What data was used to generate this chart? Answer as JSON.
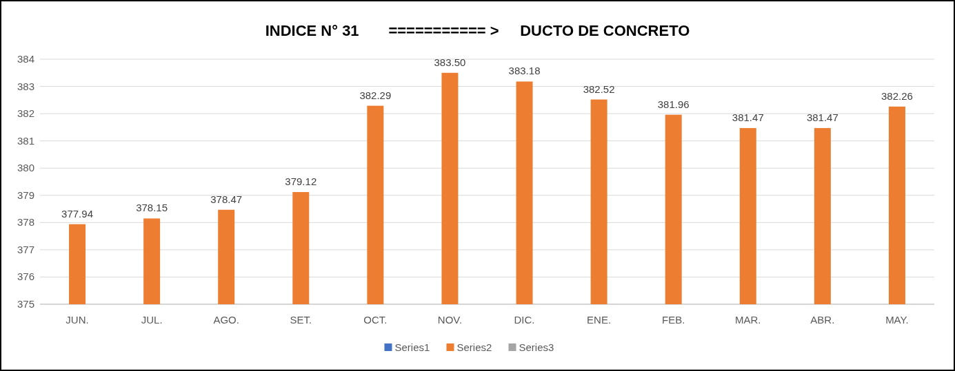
{
  "chart_data": {
    "type": "bar",
    "title": "INDICE N° 31       =========== >     DUCTO DE CONCRETO",
    "categories": [
      "JUN.",
      "JUL.",
      "AGO.",
      "SET.",
      "OCT.",
      "NOV.",
      "DIC.",
      "ENE.",
      "FEB.",
      "MAR.",
      "ABR.",
      "MAY."
    ],
    "series": [
      {
        "name": "Series1",
        "color": "#4472c4",
        "values": [
          null,
          null,
          null,
          null,
          null,
          null,
          null,
          null,
          null,
          null,
          null,
          null
        ]
      },
      {
        "name": "Series2",
        "color": "#ed7d31",
        "values": [
          377.94,
          378.15,
          378.47,
          379.12,
          382.29,
          383.5,
          383.18,
          382.52,
          381.96,
          381.47,
          381.47,
          382.26
        ],
        "value_labels": [
          "377.94",
          "378.15",
          "378.47",
          "379.12",
          "382.29",
          "383.50",
          "383.18",
          "382.52",
          "381.96",
          "381.47",
          "381.47",
          "382.26"
        ]
      },
      {
        "name": "Series3",
        "color": "#a5a5a5",
        "values": [
          null,
          null,
          null,
          null,
          null,
          null,
          null,
          null,
          null,
          null,
          null,
          null
        ]
      }
    ],
    "ylim": [
      375,
      384
    ],
    "yticks": [
      375,
      376,
      377,
      378,
      379,
      380,
      381,
      382,
      383,
      384
    ],
    "grid": "y",
    "legend": "bottom"
  }
}
